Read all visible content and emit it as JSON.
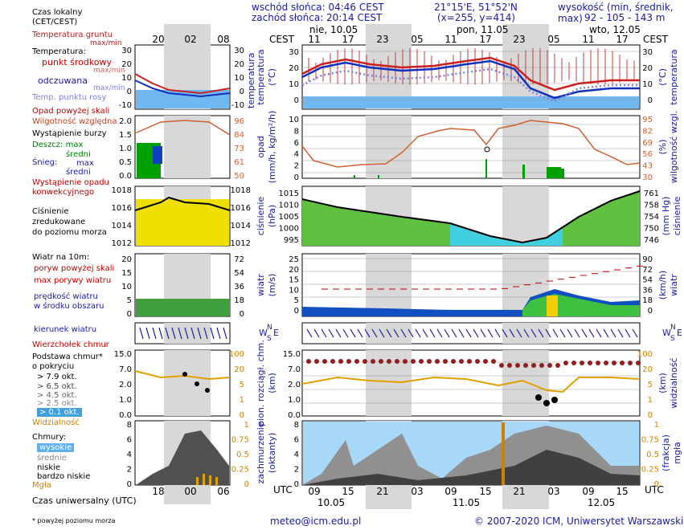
{
  "header": {
    "sunrise": "wschód słońca: 04:46 CEST",
    "sunset": "zachód słońca: 20:14 CEST",
    "coords": "21°15'E, 51°52'N",
    "grid": "(x=255, y=414)",
    "elevation_label": "wysokość (min, średnik, max)",
    "elevation_values": "92 - 105 - 143 m"
  },
  "left_legend": {
    "local_time": "Czas lokalny",
    "local_time_zone": "(CET/CEST)",
    "soil_temp": "Temperatura gruntu",
    "soil_maxmin": "max/min",
    "temperature": "Temperatura:",
    "mid_point": "punkt środkowy",
    "mid_maxmin": "max/min",
    "felt": "odczuwana",
    "felt_maxmin": "max/min",
    "dew_point": "Temp. punktu rosy",
    "precip_above": "Opad powyżej skali",
    "humidity": "Wilgotność względna",
    "storm": "Wystąpienie burzy",
    "rain": "Deszcz: max",
    "rain_mid": "średni",
    "snow": "Śnieg:",
    "snow_max": "max",
    "snow_mid": "średni",
    "conv": "Wystąpienie opadu",
    "conv2": "konwekcyjnego",
    "pressure1": "Ciśnienie",
    "pressure2": "zredukowane",
    "pressure3": "do poziomu morza",
    "wind10": "Wiatr na 10m:",
    "gust_above": "poryw powyżej skali",
    "max_gust": "max porywy wiatru",
    "wind_speed": "prędkość wiatru",
    "wind_speed2": "w środku obszaru",
    "wind_dir": "kierunek wiatru",
    "cloud_top": "Wierzchołek chmur",
    "cloud_base": "Podstawa chmur*",
    "coverage": "o pokryciu",
    "okt79": "> 7.9 okt.",
    "okt65": "> 6.5 okt.",
    "okt45": "> 4.5 okt.",
    "okt25": "> 2.5 okt.",
    "okt01": "> 0.1 okt.",
    "visibility": "Widzialność",
    "clouds": "Chmury:",
    "high": "wysokie",
    "medium": "średnie",
    "low": "niskie",
    "very_low": "bardzo niskie",
    "fog": "Mgła",
    "utc_time": "Czas uniwersalny (UTC)",
    "footnote": "* powyżej poziomu morza"
  },
  "mini_axis": {
    "top_hours": [
      "20",
      "02",
      "08"
    ],
    "bottom_hours": [
      "18",
      "00",
      "06"
    ],
    "temp_ticks": [
      "30",
      "20",
      "10",
      "0",
      "-10"
    ],
    "precip_ticks": [
      "2.0",
      "1.5",
      "1.0",
      "0.5",
      "0.0"
    ],
    "hum_ticks": [
      "96",
      "84",
      "73",
      "61",
      "50"
    ],
    "press_ticks": [
      "1018",
      "1016",
      "1014",
      "1012"
    ],
    "wind_ticks": [
      "20",
      "15",
      "10",
      "5",
      "0"
    ],
    "wind_kmh": [
      "72",
      "54",
      "36",
      "18",
      "0"
    ],
    "cloud_ticks": [
      "15.0",
      "7.0",
      "2.0",
      "1.0",
      "0.0"
    ],
    "cloud_right": [
      "100",
      "20",
      "5",
      "1",
      "0"
    ],
    "vis_ticks": [
      "8",
      "6",
      "4",
      "2",
      "0"
    ],
    "vis_right": [
      "1",
      "0.75",
      "0.5",
      "0.25",
      "0"
    ]
  },
  "main_axis": {
    "cest_label": "CEST",
    "utc_label": "UTC",
    "days_top": [
      "nie, 10.05",
      "pon, 11.05",
      "wto, 12.05"
    ],
    "hours_top": [
      "11",
      "17",
      "23",
      "05",
      "11",
      "17",
      "23",
      "05",
      "11",
      "17"
    ],
    "hours_bottom": [
      "09",
      "15",
      "21",
      "03",
      "09",
      "15",
      "21",
      "03",
      "09",
      "15"
    ],
    "days_bottom": [
      "10.05",
      "11.05",
      "12.05"
    ],
    "temp_ticks": [
      "30",
      "20",
      "10",
      "0"
    ],
    "precip_ticks": [
      "10",
      "8",
      "6",
      "4",
      "2",
      "0"
    ],
    "hum_ticks": [
      "95",
      "82",
      "69",
      "56",
      "43",
      "30"
    ],
    "press_ticks": [
      "1015",
      "1010",
      "1005",
      "1000",
      "995"
    ],
    "press_mm": [
      "761",
      "758",
      "754",
      "750",
      "746"
    ],
    "wind_ticks": [
      "25",
      "20",
      "15",
      "10",
      "5",
      "0"
    ],
    "wind_kmh": [
      "90",
      "72",
      "54",
      "36",
      "18",
      "0"
    ],
    "cloud_ticks": [
      "15.0",
      "7.0",
      "2.0",
      "1.0",
      "0.0"
    ],
    "cloud_right": [
      "100",
      "20",
      "5",
      "1",
      "0"
    ],
    "vis_ticks": [
      "8",
      "6",
      "4",
      "2",
      "0"
    ],
    "vis_right": [
      "1",
      "0.75",
      "0.5",
      "0.25",
      "0"
    ]
  },
  "panel_labels": {
    "temp_l": "temperatura",
    "temp_l2": "(°C)",
    "temp_r": "(°C)",
    "temp_r2": "temperatura",
    "precip_l": "opad",
    "precip_l2": "(mm/h, kg/m²/h)",
    "precip_r": "(%)",
    "precip_r2": "wilgotność wzgl.",
    "press_l": "ciśnienie",
    "press_l2": "(hPa)",
    "press_r": "(mm Hg)",
    "press_r2": "ciśnienie",
    "wind_l": "wiatr",
    "wind_l2": "(m/s)",
    "wind_r": "(km/h)",
    "wind_r2": "wiatr",
    "cloud_l": "pion. rozciągł. chm.",
    "cloud_l2": "(km)",
    "cloud_r": "(km)",
    "cloud_r2": "widzialność",
    "vis_l": "zachmurzenie",
    "vis_l2": "(oktanty)",
    "vis_r": "(frakcja)",
    "vis_r2": "mgła",
    "wind_dir_w": "W",
    "wind_dir_s": "S",
    "wind_dir_n": "N",
    "wind_dir_e": "E"
  },
  "footer": {
    "email": "meteo@icm.edu.pl",
    "copyright": "© 2007-2020 ICM, Uniwersytet Warszawski"
  },
  "colors": {
    "night": "#d8d8d8",
    "temp_line": "#cc2020",
    "felt_line": "#1030c0",
    "dew": "#8080e0",
    "humidity": "#d06030",
    "pressure": "#000000",
    "sky": "#a8d8f8",
    "accent_orange": "#d08000"
  }
}
